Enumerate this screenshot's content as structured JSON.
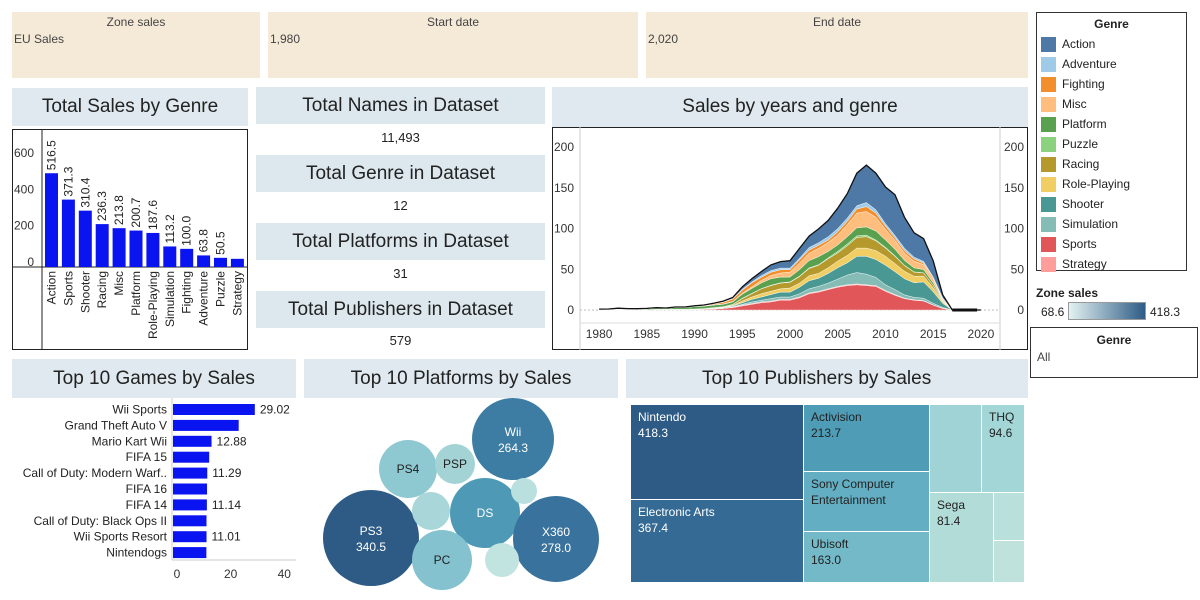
{
  "filters": {
    "zone": {
      "label": "Zone sales",
      "value": "EU Sales"
    },
    "start": {
      "label": "Start date",
      "value": "1,980"
    },
    "end": {
      "label": "End date",
      "value": "2,020"
    }
  },
  "stats": [
    {
      "title": "Total Names in Dataset",
      "value": "11,493"
    },
    {
      "title": "Total Genre in Dataset",
      "value": "12"
    },
    {
      "title": "Total Platforms in Dataset",
      "value": "31"
    },
    {
      "title": "Total Publishers in Dataset",
      "value": "579"
    }
  ],
  "titles": {
    "genre_sales": "Total Sales by Genre",
    "years_genre": "Sales by years and genre",
    "top_games": "Top 10 Games by Sales",
    "top_platforms": "Top 10 Platforms by Sales",
    "top_publishers": "Top 10 Publishers by Sales"
  },
  "legend": {
    "title": "Genre",
    "items": [
      {
        "name": "Action",
        "color": "#4e79a7"
      },
      {
        "name": "Adventure",
        "color": "#a0cbe8"
      },
      {
        "name": "Fighting",
        "color": "#f28e2b"
      },
      {
        "name": "Misc",
        "color": "#ffbe7d"
      },
      {
        "name": "Platform",
        "color": "#59a14f"
      },
      {
        "name": "Puzzle",
        "color": "#8cd17d"
      },
      {
        "name": "Racing",
        "color": "#b6992d"
      },
      {
        "name": "Role-Playing",
        "color": "#f1ce63"
      },
      {
        "name": "Shooter",
        "color": "#499894"
      },
      {
        "name": "Simulation",
        "color": "#86bcb6"
      },
      {
        "name": "Sports",
        "color": "#e15759"
      },
      {
        "name": "Strategy",
        "color": "#ff9d9a"
      }
    ]
  },
  "zone_scale": {
    "label": "Zone sales",
    "min": "68.6",
    "max": "418.3"
  },
  "genre_filter": {
    "label": "Genre",
    "value": "All"
  },
  "chart_data": [
    {
      "type": "bar",
      "title": "Total Sales by Genre",
      "categories": [
        "Action",
        "Sports",
        "Shooter",
        "Racing",
        "Misc",
        "Platform",
        "Role-Playing",
        "Simulation",
        "Fighting",
        "Adventure",
        "Puzzle",
        "Strategy"
      ],
      "values": [
        516.5,
        371.3,
        310.4,
        236.3,
        213.8,
        200.7,
        187.6,
        113.2,
        100.0,
        63.8,
        50.5,
        45.0
      ],
      "labels": [
        "516.5",
        "371.3",
        "310.4",
        "236.3",
        "213.8",
        "200.7",
        "187.6",
        "113.2",
        "100.0",
        "63.8",
        "50.5",
        ""
      ],
      "yticks": [
        "0",
        "200",
        "400",
        "600"
      ],
      "ylim": [
        0,
        650
      ],
      "color": "#0a14f0"
    },
    {
      "type": "area",
      "title": "Sales by years and genre",
      "x": [
        1980,
        1981,
        1982,
        1983,
        1984,
        1985,
        1986,
        1987,
        1988,
        1989,
        1990,
        1991,
        1992,
        1993,
        1994,
        1995,
        1996,
        1997,
        1998,
        1999,
        2000,
        2001,
        2002,
        2003,
        2004,
        2005,
        2006,
        2007,
        2008,
        2009,
        2010,
        2011,
        2012,
        2013,
        2014,
        2015,
        2016,
        2017,
        2018,
        2019,
        2020
      ],
      "series": [
        {
          "name": "Sports",
          "values": [
            0,
            0.1,
            0.1,
            0.1,
            0.2,
            0.1,
            0.5,
            0.5,
            0.4,
            0.2,
            0.5,
            0.8,
            1.2,
            2,
            3,
            5,
            7,
            9,
            10,
            12,
            12,
            15,
            20,
            22,
            25,
            28,
            30,
            31,
            30,
            29,
            23,
            18,
            14,
            12,
            11,
            6,
            2,
            0,
            0,
            0,
            0
          ]
        },
        {
          "name": "Strategy",
          "values": [
            0,
            0,
            0,
            0,
            0,
            0,
            0,
            0,
            0,
            0,
            0,
            0,
            0,
            0,
            0.5,
            1,
            1,
            1,
            1,
            1,
            1,
            1,
            1,
            1,
            1,
            1,
            1,
            1,
            1,
            1,
            1,
            1,
            0.5,
            0.5,
            0.5,
            0.3,
            0.1,
            0,
            0,
            0,
            0
          ]
        },
        {
          "name": "Simulation",
          "values": [
            0,
            0,
            0,
            0,
            0,
            0,
            0,
            0,
            0,
            0,
            0,
            0,
            0,
            0,
            0.3,
            1,
            2,
            2,
            3,
            3,
            3,
            4,
            5,
            6,
            7,
            9,
            12,
            14,
            13,
            10,
            7,
            6,
            4,
            3,
            3,
            2,
            1,
            0,
            0,
            0,
            0
          ]
        },
        {
          "name": "Shooter",
          "values": [
            0.5,
            0.5,
            0.4,
            0.2,
            0.3,
            0.1,
            0.2,
            0.3,
            0.3,
            0.2,
            0.2,
            0.3,
            0.5,
            0.6,
            1,
            2,
            3,
            4,
            5,
            6,
            6,
            8,
            10,
            10,
            12,
            14,
            15,
            20,
            22,
            22,
            24,
            22,
            20,
            18,
            20,
            14,
            5,
            0,
            0,
            0,
            0
          ]
        },
        {
          "name": "Role-Playing",
          "values": [
            0,
            0,
            0,
            0,
            0,
            0,
            0,
            0,
            0.1,
            0.1,
            0.1,
            0.2,
            0.4,
            0.5,
            0.8,
            2,
            3,
            4,
            4,
            4,
            5,
            5,
            6,
            6,
            7,
            8,
            9,
            10,
            10,
            11,
            11,
            10,
            9,
            8,
            7,
            5,
            2,
            0,
            0,
            0,
            0
          ]
        },
        {
          "name": "Racing",
          "values": [
            0,
            0,
            0,
            0,
            0,
            0,
            0,
            0,
            0,
            0,
            0.1,
            0.2,
            0.5,
            0.6,
            1,
            3,
            4,
            6,
            7,
            7,
            7,
            8,
            9,
            10,
            11,
            10,
            12,
            13,
            14,
            12,
            10,
            9,
            7,
            5,
            4,
            3,
            1,
            0,
            0,
            0,
            0
          ]
        },
        {
          "name": "Puzzle",
          "values": [
            0,
            0,
            0.1,
            0.1,
            0.1,
            0.2,
            0.1,
            0.1,
            0.2,
            0.5,
            0.3,
            0.2,
            0.4,
            0.4,
            0.3,
            0.5,
            0.4,
            0.3,
            0.4,
            0.4,
            0.5,
            0.6,
            0.7,
            0.6,
            1,
            2,
            2,
            2,
            2,
            1,
            1,
            0.5,
            0.4,
            0.3,
            0.2,
            0.1,
            0.1,
            0,
            0,
            0,
            0
          ]
        },
        {
          "name": "Platform",
          "values": [
            0,
            0,
            0.5,
            0.6,
            0.5,
            1,
            1.5,
            1,
            2,
            2,
            3,
            3,
            3,
            3,
            3,
            5,
            6,
            7,
            8,
            7,
            6,
            8,
            9,
            10,
            8,
            8,
            9,
            10,
            10,
            11,
            9,
            8,
            6,
            5,
            4,
            3,
            1,
            0,
            0,
            0,
            0
          ]
        },
        {
          "name": "Misc",
          "values": [
            0.1,
            0.1,
            0.1,
            0.1,
            0.1,
            0.1,
            0.1,
            0.1,
            0.1,
            0.1,
            0.1,
            0.2,
            0.3,
            0.4,
            0.5,
            1,
            2,
            3,
            4,
            5,
            6,
            8,
            9,
            10,
            11,
            12,
            15,
            18,
            19,
            17,
            13,
            11,
            9,
            8,
            6,
            4,
            1,
            0,
            0,
            0,
            0
          ]
        },
        {
          "name": "Fighting",
          "values": [
            0,
            0,
            0,
            0,
            0,
            0,
            0,
            0,
            0.1,
            0.1,
            0.2,
            0.5,
            1,
            2,
            3,
            4,
            5,
            4,
            4,
            4,
            3,
            4,
            4,
            4,
            3,
            4,
            4,
            5,
            6,
            5,
            4,
            3,
            3,
            3,
            2,
            2,
            1,
            0,
            0,
            0,
            0
          ]
        },
        {
          "name": "Adventure",
          "values": [
            0,
            0,
            0,
            0,
            0,
            0,
            0,
            0,
            0,
            0,
            0,
            0.2,
            0.3,
            0.4,
            0.5,
            1,
            1,
            2,
            2,
            2,
            2,
            2,
            3,
            3,
            4,
            4,
            4,
            4,
            5,
            4,
            3,
            3,
            3,
            2,
            2,
            1,
            0.5,
            0,
            0,
            0,
            0
          ]
        },
        {
          "name": "Action",
          "values": [
            0.5,
            0.5,
            1,
            0.6,
            0.4,
            0.5,
            0.6,
            0.4,
            0.5,
            0.5,
            0.6,
            0.5,
            0.6,
            1,
            1.5,
            3,
            4,
            5,
            7,
            8,
            9,
            12,
            14,
            17,
            20,
            25,
            30,
            40,
            46,
            45,
            45,
            50,
            38,
            30,
            28,
            20,
            4,
            0,
            0,
            0,
            0
          ]
        }
      ],
      "xticks": [
        "1980",
        "1985",
        "1990",
        "1995",
        "2000",
        "2005",
        "2010",
        "2015",
        "2020"
      ],
      "yticks": [
        "0",
        "50",
        "100",
        "150",
        "200"
      ],
      "ylim": [
        0,
        210
      ],
      "xlim": [
        1978,
        2022
      ]
    },
    {
      "type": "bar",
      "title": "Top 10 Games by Sales",
      "orientation": "horizontal",
      "categories": [
        "Wii Sports",
        "Grand Theft Auto V",
        "Mario Kart Wii",
        "FIFA 15",
        "Call of Duty: Modern Warf..",
        "FIFA 16",
        "FIFA 14",
        "Call of Duty: Black Ops II",
        "Wii Sports Resort",
        "Nintendogs"
      ],
      "values": [
        29.02,
        23.0,
        12.88,
        12.0,
        11.29,
        11.2,
        11.14,
        11.0,
        11.01,
        10.95
      ],
      "labels": [
        "29.02",
        "",
        "12.88",
        "",
        "11.29",
        "",
        "11.14",
        "",
        "11.01",
        ""
      ],
      "xticks": [
        "0",
        "20",
        "40"
      ],
      "xlim": [
        0,
        44
      ],
      "color": "#0a14f0"
    },
    {
      "type": "scatter",
      "title": "Top 10 Platforms by Sales",
      "bubbles": [
        {
          "name": "PS3",
          "value": "340.5",
          "color": "#2e5b86"
        },
        {
          "name": "DS",
          "value": "",
          "color": "#4e9ab6"
        },
        {
          "name": "X360",
          "value": "278.0",
          "color": "#39729c"
        },
        {
          "name": "Wii",
          "value": "264.3",
          "color": "#3e7da3"
        },
        {
          "name": "PC",
          "value": "",
          "color": "#84c2cf"
        },
        {
          "name": "PS4",
          "value": "",
          "color": "#8ec8d1"
        },
        {
          "name": "",
          "value": "",
          "color": "#a9d6d9"
        },
        {
          "name": "PSP",
          "value": "",
          "color": "#a4d3d6"
        },
        {
          "name": "",
          "value": "",
          "color": "#b9e0de"
        },
        {
          "name": "",
          "value": "",
          "color": "#c2e4e0"
        }
      ]
    }
  ],
  "treemap": [
    {
      "name": "Nintendo",
      "value": "418.3",
      "color": "#2e5b86"
    },
    {
      "name": "Electronic Arts",
      "value": "367.4",
      "color": "#346a94"
    },
    {
      "name": "Activision",
      "value": "213.7",
      "color": "#4f9cb6"
    },
    {
      "name": "Sony Computer Entertainment",
      "value": "",
      "color": "#63aec2"
    },
    {
      "name": "Ubisoft",
      "value": "163.0",
      "color": "#73b9c8"
    },
    {
      "name": "",
      "value": "",
      "color": "#9fd3d5"
    },
    {
      "name": "THQ",
      "value": "94.6",
      "color": "#a3d6d6"
    },
    {
      "name": "Sega",
      "value": "81.4",
      "color": "#b1dcd8"
    },
    {
      "name": "",
      "value": "",
      "color": "#b9e0da"
    },
    {
      "name": "",
      "value": "",
      "color": "#bfe3dc"
    }
  ]
}
